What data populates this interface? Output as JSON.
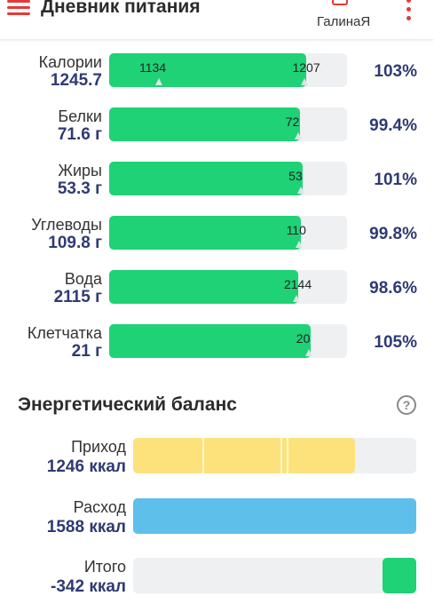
{
  "header": {
    "title": "Дневник питания",
    "profile_name": "ГалинаЯ",
    "menu_icon": "hamburger-menu-icon",
    "profile_icon": "profile-icon",
    "more_icon": "more-vertical-icon",
    "accent_color": "#e53935"
  },
  "nutrients": [
    {
      "name": "Калории",
      "value": "1245.7",
      "consumed": "1134",
      "target": "1207",
      "percent": "103%",
      "fill": 1.03
    },
    {
      "name": "Белки",
      "value": "71.6 г",
      "target": "72",
      "percent": "99.4%",
      "fill": 0.994
    },
    {
      "name": "Жиры",
      "value": "53.3 г",
      "target": "53",
      "percent": "101%",
      "fill": 1.01
    },
    {
      "name": "Углеводы",
      "value": "109.8 г",
      "target": "110",
      "percent": "99.8%",
      "fill": 0.998
    },
    {
      "name": "Вода",
      "value": "2115 г",
      "target": "2144",
      "percent": "98.6%",
      "fill": 0.986
    },
    {
      "name": "Клетчатка",
      "value": "21 г",
      "target": "20",
      "percent": "105%",
      "fill": 1.05
    }
  ],
  "energy": {
    "title": "Энергетический баланс",
    "help_icon": "help-circle-icon",
    "income": {
      "label": "Приход",
      "value": "1246 ккал",
      "kcal": 1246
    },
    "expense": {
      "label": "Расход",
      "value": "1588 ккал",
      "kcal": 1588
    },
    "total": {
      "label": "Итого",
      "value": "-342 ккал",
      "kcal": -342
    }
  },
  "colors": {
    "progress_green": "#1ed275",
    "income_yellow": "#fde27c",
    "expense_blue": "#5ebfeb",
    "track_gray": "#eef0f2",
    "value_navy": "#2f3a73"
  }
}
